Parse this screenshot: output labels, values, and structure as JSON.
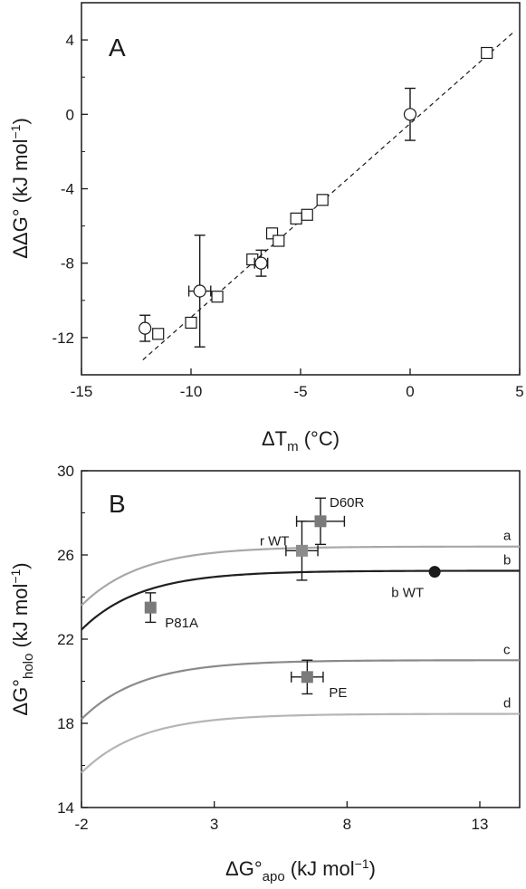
{
  "chart_data": [
    {
      "type": "scatter",
      "panel_label": "A",
      "xlabel_main": "ΔT",
      "xlabel_sub": "m",
      "xlabel_unit": " (°C)",
      "ylabel_main": "ΔΔG°",
      "ylabel_unit": " (kJ mol",
      "ylabel_exp": "−1",
      "ylabel_close": ")",
      "xlim": [
        -15,
        5
      ],
      "ylim": [
        -14,
        6
      ],
      "xticks": [
        -15,
        -10,
        -5,
        0,
        5
      ],
      "xtick_labels": [
        "-15",
        "-10",
        "-5",
        "0",
        "5"
      ],
      "yticks": [
        -12,
        -8,
        -4,
        0,
        4
      ],
      "ytick_labels": [
        "-12",
        "-8",
        "-4",
        "0",
        "4"
      ],
      "grid": false,
      "fit_line": {
        "x": [
          -12.2,
          4.8
        ],
        "y": [
          -13.2,
          4.5
        ],
        "style": "dashed"
      },
      "series": [
        {
          "marker": "square",
          "points": [
            {
              "x": 3.5,
              "y": 3.3
            },
            {
              "x": -4.0,
              "y": -4.6
            },
            {
              "x": -4.7,
              "y": -5.4
            },
            {
              "x": -5.2,
              "y": -5.6
            },
            {
              "x": -6.3,
              "y": -6.4
            },
            {
              "x": -6.0,
              "y": -6.8
            },
            {
              "x": -7.2,
              "y": -7.8
            },
            {
              "x": -8.8,
              "y": -9.8
            },
            {
              "x": -10.0,
              "y": -11.2
            },
            {
              "x": -11.5,
              "y": -11.8
            }
          ]
        },
        {
          "marker": "circle",
          "points": [
            {
              "x": 0.0,
              "y": 0.0,
              "yerr": 1.4
            },
            {
              "x": -6.8,
              "y": -8.0,
              "yerr": 0.7,
              "xerr": 0.3
            },
            {
              "x": -9.6,
              "y": -9.5,
              "yerr": 3.0,
              "xerr": 0.5
            },
            {
              "x": -12.1,
              "y": -11.5,
              "yerr": 0.7
            }
          ]
        }
      ]
    },
    {
      "type": "line",
      "panel_label": "B",
      "xlabel_main": "ΔG°",
      "xlabel_sub": "apo",
      "xlabel_unit": " (kJ mol",
      "xlabel_exp": "−1",
      "xlabel_close": ")",
      "ylabel_main": "ΔG°",
      "ylabel_sub": "holo",
      "ylabel_unit": " (kJ mol",
      "ylabel_exp": "−1",
      "ylabel_close": ")",
      "xlim": [
        -2,
        14.5
      ],
      "ylim": [
        14,
        30
      ],
      "xticks": [
        -2,
        3,
        8,
        13
      ],
      "xtick_labels": [
        "-2",
        "3",
        "8",
        "13"
      ],
      "yticks": [
        14,
        18,
        22,
        26,
        30
      ],
      "ytick_labels": [
        "14",
        "18",
        "22",
        "26",
        "30"
      ],
      "grid": false,
      "curves": [
        {
          "label": "a",
          "plateau": 26.4,
          "start": 23.6,
          "color": "#a8a8a8"
        },
        {
          "label": "b",
          "plateau": 25.25,
          "start": 22.45,
          "color": "#202020"
        },
        {
          "label": "c",
          "plateau": 21.0,
          "start": 18.2,
          "color": "#8a8a8a"
        },
        {
          "label": "d",
          "plateau": 18.45,
          "start": 15.65,
          "color": "#b5b5b5"
        }
      ],
      "points": [
        {
          "label": "D60R",
          "x": 7.0,
          "y": 27.6,
          "xerr": 0.9,
          "yerr": 1.1,
          "marker": "square",
          "color": "#7a7a7a"
        },
        {
          "label": "r WT",
          "x": 6.3,
          "y": 26.2,
          "xerr": 0.6,
          "yerr": 1.4,
          "marker": "square",
          "color": "#8c8c8c"
        },
        {
          "label": "b WT",
          "x": 11.3,
          "y": 25.2,
          "marker": "circle",
          "color": "#1a1a1a"
        },
        {
          "label": "P81A",
          "x": 0.6,
          "y": 23.5,
          "yerr": 0.7,
          "marker": "square",
          "color": "#7a7a7a"
        },
        {
          "label": "PE",
          "x": 6.5,
          "y": 20.2,
          "xerr": 0.6,
          "yerr": 0.8,
          "marker": "square",
          "color": "#7a7a7a"
        }
      ]
    }
  ]
}
